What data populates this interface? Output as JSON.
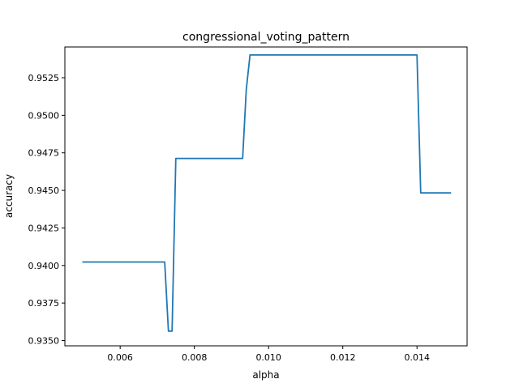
{
  "colors": {
    "line": "#1f77b4",
    "axes": "#000000",
    "background": "#ffffff"
  },
  "chart_data": {
    "type": "line",
    "title": "congressional_voting_pattern",
    "xlabel": "alpha",
    "ylabel": "accuracy",
    "xlim": [
      0.00451,
      0.01535
    ],
    "ylim": [
      0.93465,
      0.95455
    ],
    "grid": false,
    "legend": "none",
    "x_ticks": [
      0.006,
      0.008,
      0.01,
      0.012,
      0.014
    ],
    "x_tick_labels": [
      "0.006",
      "0.008",
      "0.010",
      "0.012",
      "0.014"
    ],
    "y_ticks": [
      0.935,
      0.9375,
      0.94,
      0.9425,
      0.945,
      0.9475,
      0.95,
      0.9525
    ],
    "y_tick_labels": [
      "0.9350",
      "0.9375",
      "0.9400",
      "0.9425",
      "0.9450",
      "0.9475",
      "0.9500",
      "0.9525"
    ],
    "series": [
      {
        "x": [
          0.005,
          0.0072,
          0.0073,
          0.0074,
          0.0075,
          0.0093,
          0.0094,
          0.0095,
          0.014,
          0.0141,
          0.0149
        ],
        "y": [
          0.94023,
          0.94023,
          0.93563,
          0.93563,
          0.94713,
          0.94713,
          0.95172,
          0.95402,
          0.95402,
          0.94483,
          0.94483
        ]
      }
    ]
  }
}
